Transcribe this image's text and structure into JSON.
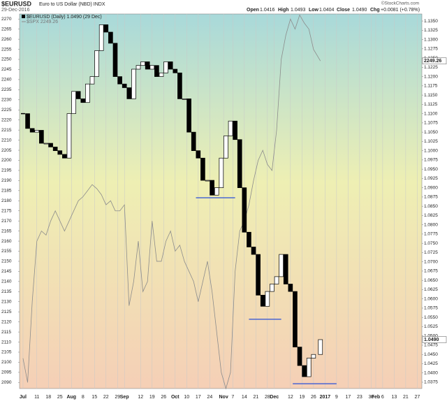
{
  "chart_data": {
    "type": "candlestick",
    "title": "$EURUSD",
    "subtitle": "Euro to US Dollar (NBD) INDX",
    "date": "29-Dec-2016",
    "quote": {
      "open_label": "Open",
      "open": "1.0416",
      "high_label": "High",
      "high": "1.0493",
      "low_label": "Low",
      "low": "1.0404",
      "close_label": "Close",
      "close": "1.0490",
      "chg_label": "Chg",
      "chg": "+0.0081 (+0.78%)"
    },
    "credit": "©StockCharts.com",
    "xlim": [
      -1.5,
      173
    ],
    "xticks": [
      {
        "value": 0,
        "label": "Jul"
      },
      {
        "value": 6,
        "label": "11"
      },
      {
        "value": 11,
        "label": "18"
      },
      {
        "value": 16,
        "label": "25"
      },
      {
        "value": 21,
        "label": "Aug"
      },
      {
        "value": 26,
        "label": "8"
      },
      {
        "value": 31,
        "label": "15"
      },
      {
        "value": 36,
        "label": "22"
      },
      {
        "value": 41,
        "label": "29"
      },
      {
        "value": 44,
        "label": "Sep"
      },
      {
        "value": 51,
        "label": "12"
      },
      {
        "value": 56,
        "label": "19"
      },
      {
        "value": 61,
        "label": "26"
      },
      {
        "value": 66,
        "label": "Oct"
      },
      {
        "value": 71,
        "label": "10"
      },
      {
        "value": 76,
        "label": "17"
      },
      {
        "value": 81,
        "label": "24"
      },
      {
        "value": 87,
        "label": "Nov"
      },
      {
        "value": 91,
        "label": "7"
      },
      {
        "value": 96,
        "label": "14"
      },
      {
        "value": 101,
        "label": "21"
      },
      {
        "value": 106,
        "label": "28"
      },
      {
        "value": 109,
        "label": "Dec"
      },
      {
        "value": 116,
        "label": "12"
      },
      {
        "value": 121,
        "label": "19"
      },
      {
        "value": 126,
        "label": "26"
      },
      {
        "value": 131,
        "label": "2017"
      },
      {
        "value": 136,
        "label": "9"
      },
      {
        "value": 141,
        "label": "17"
      },
      {
        "value": 146,
        "label": "23"
      },
      {
        "value": 151,
        "label": "30"
      },
      {
        "value": 153,
        "label": "Feb"
      },
      {
        "value": 156,
        "label": "6"
      },
      {
        "value": 161,
        "label": "13"
      },
      {
        "value": 166,
        "label": "21"
      },
      {
        "value": 171,
        "label": "27"
      }
    ],
    "ylim": [
      2087,
      2272.5
    ],
    "yticks": [
      2090,
      2095,
      2100,
      2105,
      2110,
      2115,
      2120,
      2125,
      2130,
      2135,
      2140,
      2145,
      2150,
      2155,
      2160,
      2165,
      2170,
      2175,
      2180,
      2185,
      2190,
      2195,
      2200,
      2205,
      2210,
      2215,
      2220,
      2225,
      2230,
      2235,
      2240,
      2245,
      2250,
      2255,
      2260,
      2265,
      2270
    ],
    "y2lim": [
      1.0358,
      1.1369
    ],
    "y2ticks": [
      {
        "value": 1.0375,
        "label": "1.0375"
      },
      {
        "value": 1.04,
        "label": "1.0400"
      },
      {
        "value": 1.0425,
        "label": "1.0425"
      },
      {
        "value": 1.045,
        "label": "1.0450"
      },
      {
        "value": 1.0475,
        "label": "1.0475"
      },
      {
        "value": 1.05,
        "label": "1.0500"
      },
      {
        "value": 1.0525,
        "label": "1.0525"
      },
      {
        "value": 1.055,
        "label": "1.0550"
      },
      {
        "value": 1.0575,
        "label": "1.0575"
      },
      {
        "value": 1.06,
        "label": "1.0600"
      },
      {
        "value": 1.0625,
        "label": "1.0625"
      },
      {
        "value": 1.065,
        "label": "1.0650"
      },
      {
        "value": 1.0675,
        "label": "1.0675"
      },
      {
        "value": 1.07,
        "label": "1.0700"
      },
      {
        "value": 1.0725,
        "label": "1.0725"
      },
      {
        "value": 1.075,
        "label": "1.0750"
      },
      {
        "value": 1.0775,
        "label": "1.0775"
      },
      {
        "value": 1.08,
        "label": "1.0800"
      },
      {
        "value": 1.0825,
        "label": "1.0825"
      },
      {
        "value": 1.085,
        "label": "1.0850"
      },
      {
        "value": 1.0875,
        "label": "1.0875"
      },
      {
        "value": 1.09,
        "label": "1.0900"
      },
      {
        "value": 1.0925,
        "label": "1.0925"
      },
      {
        "value": 1.095,
        "label": "1.0950"
      },
      {
        "value": 1.0975,
        "label": "1.0975"
      },
      {
        "value": 1.1,
        "label": "1.1000"
      },
      {
        "value": 1.1025,
        "label": "1.1025"
      },
      {
        "value": 1.105,
        "label": "1.1050"
      },
      {
        "value": 1.1075,
        "label": "1.1075"
      },
      {
        "value": 1.11,
        "label": "1.1100"
      },
      {
        "value": 1.1125,
        "label": "1.1125"
      },
      {
        "value": 1.115,
        "label": "1.1150"
      },
      {
        "value": 1.1175,
        "label": "1.1175"
      },
      {
        "value": 1.12,
        "label": "1.1200"
      },
      {
        "value": 1.1225,
        "label": "1.1225"
      },
      {
        "value": 1.125,
        "label": "1.1250"
      },
      {
        "value": 1.1275,
        "label": "1.1275"
      },
      {
        "value": 1.13,
        "label": "1.1300"
      },
      {
        "value": 1.1325,
        "label": "1.1325"
      },
      {
        "value": 1.135,
        "label": "1.1350"
      }
    ],
    "x": [
      0,
      2,
      4,
      6,
      8,
      10,
      12,
      14,
      16,
      18,
      20,
      22,
      24,
      26,
      28,
      30,
      32,
      34,
      36,
      38,
      40,
      42,
      44,
      46,
      48,
      50,
      52,
      54,
      56,
      58,
      60,
      62,
      64,
      66,
      68,
      70,
      72,
      74,
      76,
      78,
      80,
      82,
      84,
      86,
      88,
      90,
      92,
      94,
      96,
      98,
      100,
      102,
      104,
      106,
      108,
      110,
      112,
      114,
      116,
      118,
      120,
      122,
      124,
      126,
      129
    ],
    "series": [
      {
        "name": "$EURUSD (Daily) 1.0490 (29 Dec)",
        "axis": "y2",
        "color": "#000000",
        "last_label": "1.0490",
        "values": [
          1.11,
          1.106,
          1.105,
          1.1055,
          1.102,
          1.102,
          1.101,
          1.1,
          1.099,
          1.098,
          1.11,
          1.116,
          1.114,
          1.113,
          1.118,
          1.12,
          1.127,
          1.134,
          1.132,
          1.129,
          1.12,
          1.118,
          1.117,
          1.114,
          1.122,
          1.123,
          1.124,
          1.122,
          1.123,
          1.12,
          1.121,
          1.124,
          1.122,
          1.121,
          1.114,
          1.114,
          1.105,
          1.1,
          1.098,
          1.092,
          1.092,
          1.088,
          1.09,
          1.098,
          1.104,
          1.108,
          1.103,
          1.09,
          1.078,
          1.074,
          1.072,
          1.061,
          1.058,
          1.062,
          1.064,
          1.066,
          1.072,
          1.064,
          1.062,
          1.047,
          1.042,
          1.039,
          1.044,
          1.045,
          1.049
        ]
      },
      {
        "name": "$SPX 2249.26",
        "color": "#8c8c8c",
        "last_label": "2249.26",
        "values": [
          2102,
          2090,
          2130,
          2160,
          2165,
          2163,
          2170,
          2175,
          2170,
          2165,
          2170,
          2175,
          2180,
          2182,
          2185,
          2188,
          2186,
          2183,
          2178,
          2180,
          2175,
          2175,
          2178,
          2128,
          2140,
          2160,
          2135,
          2140,
          2170,
          2150,
          2150,
          2160,
          2165,
          2155,
          2158,
          2150,
          2145,
          2140,
          2130,
          2140,
          2150,
          2135,
          2115,
          2095,
          2087,
          2095,
          2145,
          2165,
          2170,
          2178,
          2190,
          2200,
          2205,
          2198,
          2195,
          2215,
          2250,
          2262,
          2270,
          2265,
          2272,
          2268,
          2265,
          2255,
          2249.26
        ]
      }
    ],
    "support_lines": [
      {
        "x": [
          75,
          92
        ],
        "y": 1.0873
      },
      {
        "x": [
          98,
          112
        ],
        "y": 1.0545
      },
      {
        "x": [
          117,
          136
        ],
        "y": 1.0371
      }
    ],
    "grid": true
  }
}
